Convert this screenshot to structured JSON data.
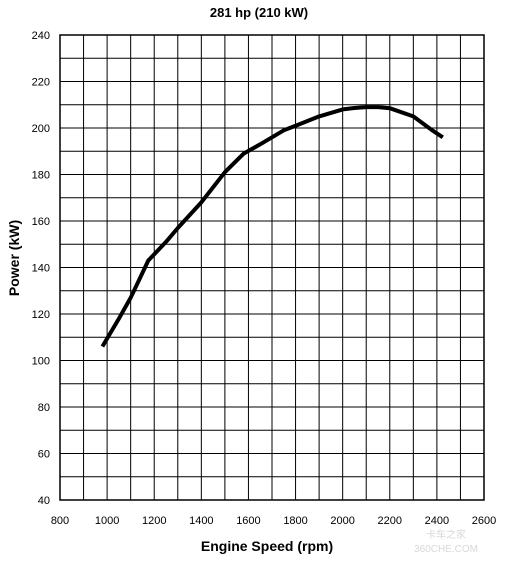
{
  "chart_data": {
    "type": "line",
    "title": "281 hp (210 kW)",
    "xlabel": "Engine Speed (rpm)",
    "ylabel": "Power (kW)",
    "xlim": [
      800,
      2600
    ],
    "ylim": [
      40,
      240
    ],
    "xticks": [
      800,
      1000,
      1200,
      1400,
      1600,
      1800,
      2000,
      2200,
      2400,
      2600
    ],
    "yticks": [
      40,
      60,
      80,
      100,
      120,
      140,
      160,
      180,
      200,
      220,
      240
    ],
    "grid": true,
    "series": [
      {
        "x": [
          980,
          1050,
          1100,
          1175,
          1250,
          1300,
          1400,
          1500,
          1580,
          1650,
          1750,
          1800,
          1900,
          2000,
          2050,
          2100,
          2150,
          2200,
          2300,
          2380,
          2425
        ],
        "y": [
          106,
          118,
          127,
          143,
          151,
          157,
          168,
          181,
          189,
          193,
          199,
          201,
          205,
          208,
          208.6,
          209,
          209,
          208.5,
          205,
          199,
          196
        ]
      }
    ],
    "colors": {
      "line": "#000000",
      "grid": "#000000",
      "background": "#ffffff"
    }
  },
  "watermark": {
    "line1": "卡车之家",
    "line2": "360CHE.COM"
  }
}
